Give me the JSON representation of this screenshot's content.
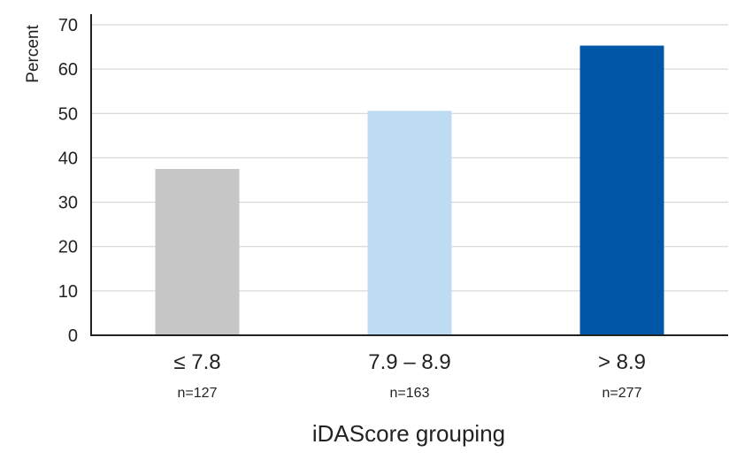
{
  "chart_data": {
    "type": "bar",
    "categories": [
      "≤ 7.8",
      "7.9 – 8.9",
      "> 8.9"
    ],
    "sample_sizes": [
      "n=127",
      "n=163",
      "n=277"
    ],
    "values": [
      37.5,
      50.6,
      65.3
    ],
    "colors": [
      "#c6c6c6",
      "#bddcf4",
      "#0057a8"
    ],
    "ylabel": "Percent",
    "xlabel": "iDAScore grouping",
    "ylim": [
      0,
      70
    ],
    "yticks": [
      0,
      10,
      20,
      30,
      40,
      50,
      60,
      70
    ],
    "grid": true
  }
}
